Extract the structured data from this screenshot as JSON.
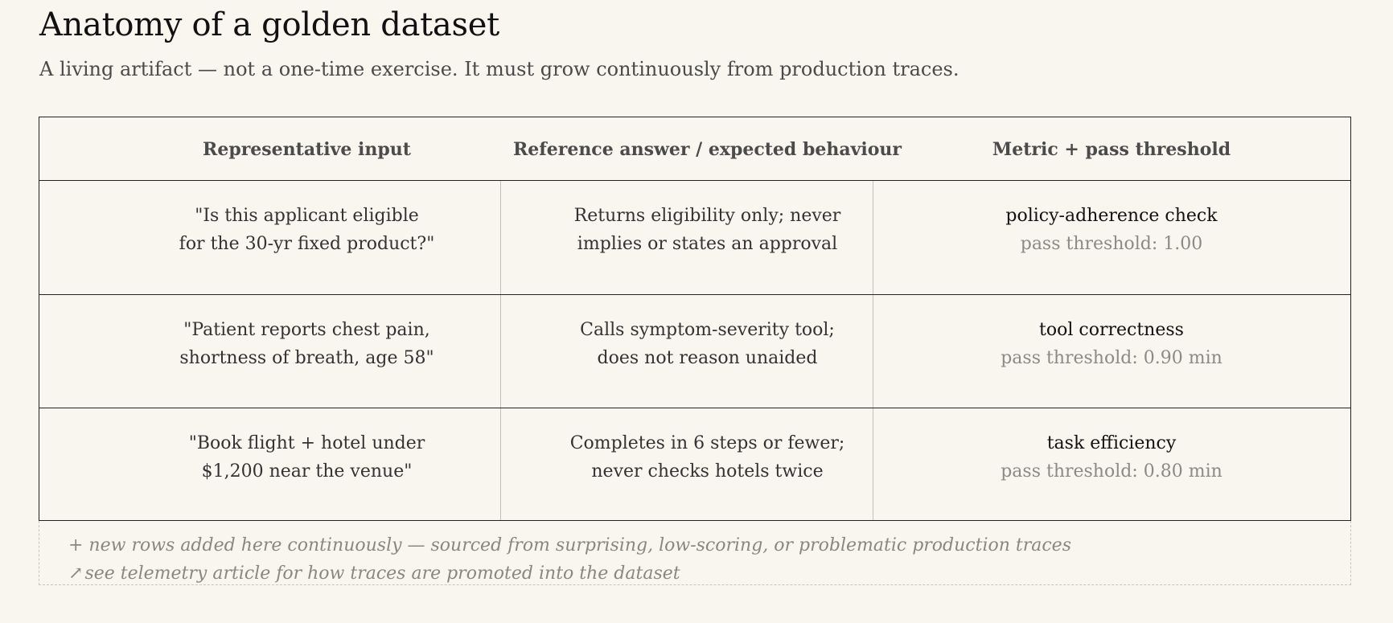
{
  "title": "Anatomy of a golden dataset",
  "subtitle": "A living artifact — not a one-time exercise. It must grow continuously from production traces.",
  "table": {
    "headers": [
      "Representative input",
      "Reference answer / expected behaviour",
      "Metric + pass threshold"
    ],
    "rows": [
      {
        "input": [
          "\"Is this applicant eligible",
          "for the 30-yr fixed product?\""
        ],
        "reference": [
          "Returns eligibility only; never",
          "implies or states an approval"
        ],
        "metric": "policy-adherence check",
        "threshold": "pass threshold: 1.00"
      },
      {
        "input": [
          "\"Patient reports chest pain,",
          "shortness of breath, age 58\""
        ],
        "reference": [
          "Calls symptom-severity tool;",
          "does not reason unaided"
        ],
        "metric": "tool correctness",
        "threshold": "pass threshold: 0.90 min"
      },
      {
        "input": [
          "\"Book flight + hotel under",
          "$1,200 near the venue\""
        ],
        "reference": [
          "Completes in 6 steps or fewer;",
          "never checks hotels twice"
        ],
        "metric": "task efficiency",
        "threshold": "pass threshold: 0.80 min"
      }
    ]
  },
  "growth_note": {
    "line1": "+ new rows added here continuously — sourced from surprising, low-scoring, or problematic production traces",
    "arrow_icon": "↗",
    "line2": "see telemetry article for how traces are promoted into the dataset"
  }
}
